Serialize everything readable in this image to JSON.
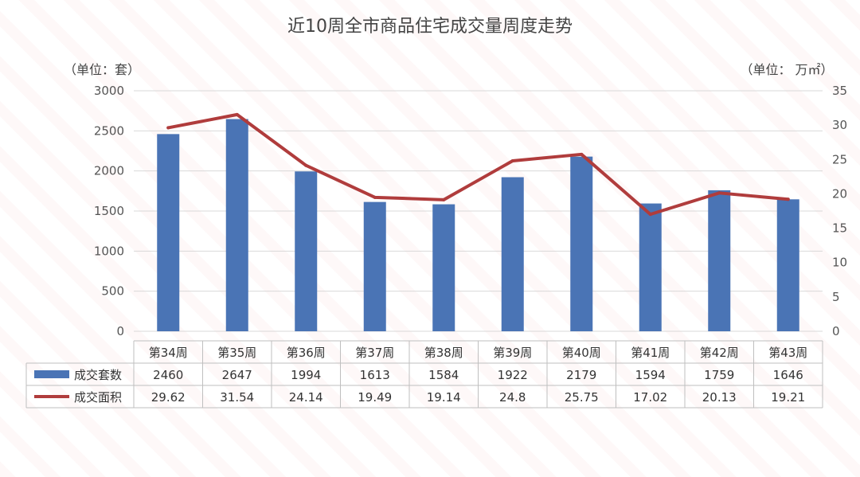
{
  "chart_data": {
    "type": "bar",
    "title": "近10周全市商品住宅成交量周度走势",
    "left_unit_label": "（单位：套）",
    "right_unit_label": "（单位：  万㎡）",
    "categories": [
      "第34周",
      "第35周",
      "第36周",
      "第37周",
      "第38周",
      "第39周",
      "第40周",
      "第41周",
      "第42周",
      "第43周"
    ],
    "series": [
      {
        "name": "成交套数",
        "type": "bar",
        "axis": "left",
        "color": "#4a74b5",
        "values": [
          2460,
          2647,
          1994,
          1613,
          1584,
          1922,
          2179,
          1594,
          1759,
          1646
        ],
        "value_labels": [
          "2460",
          "2647",
          "1994",
          "1613",
          "1584",
          "1922",
          "2179",
          "1594",
          "1759",
          "1646"
        ]
      },
      {
        "name": "成交面积",
        "type": "line",
        "axis": "right",
        "color": "#b03c3c",
        "values": [
          29.62,
          31.54,
          24.14,
          19.49,
          19.14,
          24.8,
          25.75,
          17.02,
          20.13,
          19.21
        ],
        "value_labels": [
          "29.62",
          "31.54",
          "24.14",
          "19.49",
          "19.14",
          "24.8",
          "25.75",
          "17.02",
          "20.13",
          "19.21"
        ]
      }
    ],
    "left_axis": {
      "min": 0,
      "max": 3000,
      "ticks": [
        "0",
        "500",
        "1000",
        "1500",
        "2000",
        "2500",
        "3000"
      ]
    },
    "right_axis": {
      "min": 0,
      "max": 35,
      "ticks": [
        "0",
        "5",
        "10",
        "15",
        "20",
        "25",
        "30",
        "35"
      ]
    },
    "grid": true,
    "legend": "data-table"
  }
}
